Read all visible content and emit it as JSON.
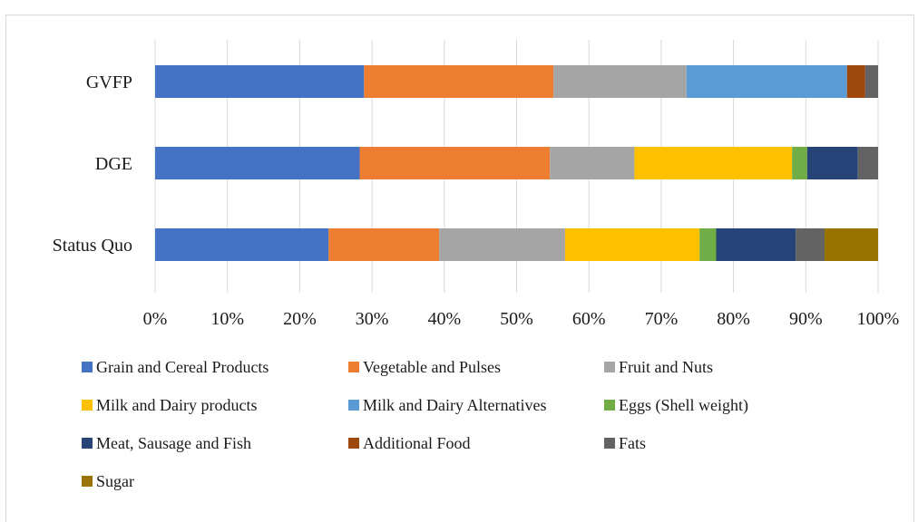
{
  "chart_data": {
    "type": "bar",
    "orientation": "horizontal",
    "stacked": "percent",
    "categories": [
      "GVFP",
      "DGE",
      "Status Quo"
    ],
    "x_ticks": [
      "0%",
      "10%",
      "20%",
      "30%",
      "40%",
      "50%",
      "60%",
      "70%",
      "80%",
      "90%",
      "100%"
    ],
    "xlim": [
      0,
      100
    ],
    "grid": "vertical",
    "legend_position": "bottom",
    "series": [
      {
        "name": "Grain and Cereal Products",
        "color": "#4472c4",
        "values": [
          28.9,
          28.3,
          24.0
        ]
      },
      {
        "name": "Vegetable and Pulses",
        "color": "#ed7d31",
        "values": [
          26.2,
          26.3,
          15.3
        ]
      },
      {
        "name": "Fruit and Nuts",
        "color": "#a5a5a5",
        "values": [
          18.4,
          11.7,
          17.4
        ]
      },
      {
        "name": "Milk and Dairy products",
        "color": "#ffc000",
        "values": [
          0,
          21.8,
          18.6
        ]
      },
      {
        "name": "Milk and Dairy Alternatives",
        "color": "#5b9bd5",
        "values": [
          22.2,
          0,
          0
        ]
      },
      {
        "name": "Eggs (Shell weight)",
        "color": "#70ad47",
        "values": [
          0,
          2.1,
          2.3
        ]
      },
      {
        "name": "Meat, Sausage and Fish",
        "color": "#264478",
        "values": [
          0,
          7.0,
          11.0
        ]
      },
      {
        "name": "Additional Food",
        "color": "#9e480e",
        "values": [
          2.5,
          0,
          0
        ]
      },
      {
        "name": "Fats",
        "color": "#636363",
        "values": [
          1.8,
          2.8,
          4.0
        ]
      },
      {
        "name": "Sugar",
        "color": "#997300",
        "values": [
          0,
          0,
          7.4
        ]
      }
    ]
  }
}
